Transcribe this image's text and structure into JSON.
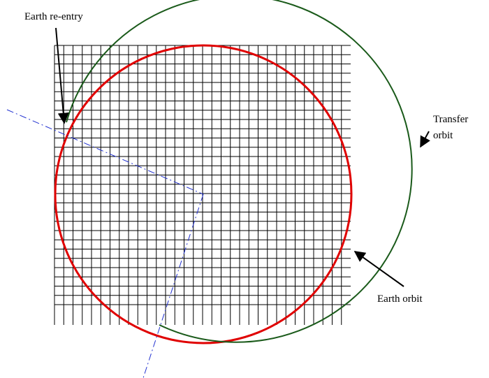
{
  "annotations": {
    "reentry": "Earth re-entry",
    "transfer": [
      "Transfer",
      "orbit"
    ],
    "earth": "Earth orbit"
  }
}
